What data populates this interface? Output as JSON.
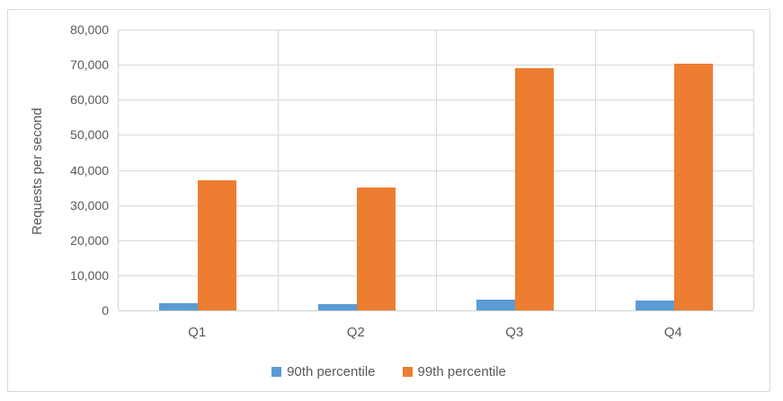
{
  "chart_data": {
    "type": "bar",
    "title": "",
    "xlabel": "",
    "ylabel": "Requests per second",
    "categories": [
      "Q1",
      "Q2",
      "Q3",
      "Q4"
    ],
    "series": [
      {
        "name": "90th percentile",
        "color": "#5B9BD5",
        "values": [
          2000,
          1800,
          3000,
          2800
        ]
      },
      {
        "name": "99th percentile",
        "color": "#ED7D31",
        "values": [
          37000,
          35000,
          69000,
          70300
        ]
      }
    ],
    "ylim": [
      0,
      80000
    ],
    "y_tick_values": [
      0,
      10000,
      20000,
      30000,
      40000,
      50000,
      60000,
      70000,
      80000
    ],
    "y_tick_labels": [
      "0",
      "10,000",
      "20,000",
      "30,000",
      "40,000",
      "50,000",
      "60,000",
      "70,000",
      "80,000"
    ],
    "grid": true,
    "legend_position": "bottom",
    "colors": {
      "text": "#595959",
      "gridline": "#D9D9D9",
      "frame_border": "#D9D9D9",
      "background": "#FFFFFF"
    }
  }
}
